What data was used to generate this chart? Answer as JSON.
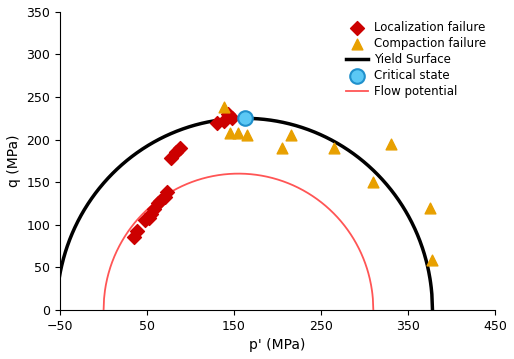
{
  "xlabel": "p' (MPa)",
  "ylabel": "q (MPa)",
  "xlim": [
    -50,
    450
  ],
  "ylim": [
    0,
    350
  ],
  "xticks": [
    -50,
    50,
    150,
    250,
    350,
    450
  ],
  "yticks": [
    0,
    50,
    100,
    150,
    200,
    250,
    300,
    350
  ],
  "localization_x": [
    35,
    38,
    48,
    52,
    55,
    58,
    62,
    65,
    70,
    73,
    78,
    83,
    88,
    130,
    138,
    143,
    148
  ],
  "localization_y": [
    85,
    93,
    105,
    108,
    112,
    118,
    125,
    128,
    132,
    138,
    178,
    185,
    190,
    220,
    222,
    230,
    225
  ],
  "compaction_x": [
    138,
    145,
    155,
    165,
    205,
    215,
    265,
    310,
    330,
    375,
    378
  ],
  "compaction_y": [
    238,
    208,
    208,
    205,
    190,
    205,
    190,
    150,
    195,
    120,
    58
  ],
  "critical_state_x": [
    162
  ],
  "critical_state_y": [
    225
  ],
  "yield_pc": 378.0,
  "yield_peak_p": 162.0,
  "yield_peak_q": 225.0,
  "flow_pc": 310.0,
  "flow_peak_p": 155.0,
  "flow_peak_q": 160.0,
  "localization_color": "#CC0000",
  "compaction_color": "#E8A000",
  "yield_color": "#000000",
  "critical_color": "#5BC8F5",
  "flow_color": "#FF5555",
  "yield_lw": 2.5,
  "flow_lw": 1.3
}
